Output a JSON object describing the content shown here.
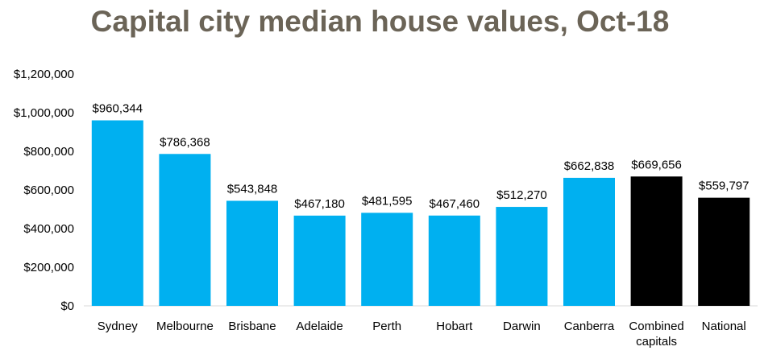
{
  "chart_data": {
    "type": "bar",
    "title": "Capital city median house values, Oct-18",
    "xlabel": "",
    "ylabel": "",
    "ylim": [
      0,
      1200000
    ],
    "yticks": [
      {
        "value": 0,
        "label": "$0"
      },
      {
        "value": 200000,
        "label": "$200,000"
      },
      {
        "value": 400000,
        "label": "$400,000"
      },
      {
        "value": 600000,
        "label": "$600,000"
      },
      {
        "value": 800000,
        "label": "$800,000"
      },
      {
        "value": 1000000,
        "label": "$1,000,000"
      },
      {
        "value": 1200000,
        "label": "$1,200,000"
      }
    ],
    "grid": false,
    "categories": [
      [
        "Sydney"
      ],
      [
        "Melbourne"
      ],
      [
        "Brisbane"
      ],
      [
        "Adelaide"
      ],
      [
        "Perth"
      ],
      [
        "Hobart"
      ],
      [
        "Darwin"
      ],
      [
        "Canberra"
      ],
      [
        "Combined",
        "capitals"
      ],
      [
        "National"
      ]
    ],
    "values": [
      960344,
      786368,
      543848,
      467180,
      481595,
      467460,
      512270,
      662838,
      669656,
      559797
    ],
    "data_labels": [
      "$960,344",
      "$786,368",
      "$543,848",
      "$467,180",
      "$481,595",
      "$467,460",
      "$512,270",
      "$662,838",
      "$669,656",
      "$559,797"
    ],
    "bar_colors": [
      "#00b0f0",
      "#00b0f0",
      "#00b0f0",
      "#00b0f0",
      "#00b0f0",
      "#00b0f0",
      "#00b0f0",
      "#00b0f0",
      "#000000",
      "#000000"
    ]
  }
}
